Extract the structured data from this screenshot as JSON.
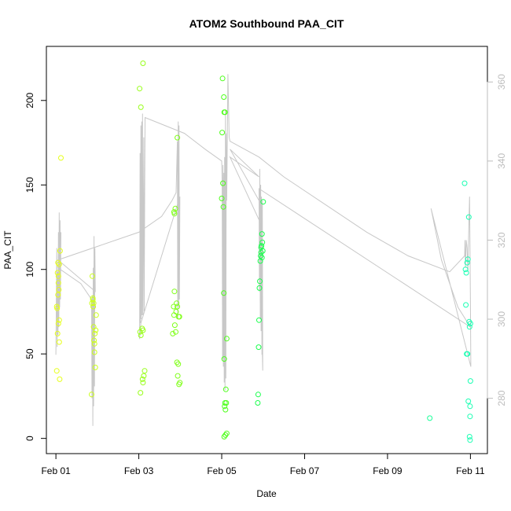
{
  "chart_data": {
    "type": "scatter",
    "title": "ATOM2 Southbound PAA_CIT",
    "xlabel": "Date",
    "ylabel": "PAA_CIT",
    "x_ticks": [
      "Feb 01",
      "Feb 03",
      "Feb 05",
      "Feb 07",
      "Feb 09",
      "Feb 11"
    ],
    "x_tick_days": [
      1,
      3,
      5,
      7,
      9,
      11
    ],
    "xlim": [
      0.77,
      11.41
    ],
    "ylim": [
      -9,
      232
    ],
    "y_ticks": [
      0,
      50,
      100,
      150,
      200
    ],
    "y2lim": [
      266,
      369
    ],
    "y2_ticks": [
      280,
      300,
      320,
      340,
      360
    ],
    "grid": false,
    "colors": {
      "axis": "#000000",
      "secondary_axis": "#bdbdbd",
      "trace": "#c8c8c8"
    },
    "point_series": [
      {
        "color": "#e6ff1a",
        "points": [
          [
            1.02,
            78
          ],
          [
            1.03,
            77
          ],
          [
            1.02,
            40
          ],
          [
            1.04,
            62
          ],
          [
            1.05,
            104
          ],
          [
            1.06,
            92
          ],
          [
            1.07,
            88
          ],
          [
            1.05,
            85
          ],
          [
            1.08,
            57
          ],
          [
            1.06,
            68
          ],
          [
            1.08,
            70
          ],
          [
            1.09,
            35
          ],
          [
            1.1,
            111
          ],
          [
            1.08,
            103
          ],
          [
            1.12,
            166
          ],
          [
            1.06,
            96
          ],
          [
            1.04,
            98
          ]
        ]
      },
      {
        "color": "#ccff1a",
        "points": [
          [
            1.86,
            26
          ],
          [
            1.87,
            80
          ],
          [
            1.88,
            96
          ],
          [
            1.89,
            83
          ],
          [
            1.9,
            78
          ],
          [
            1.91,
            66
          ],
          [
            1.92,
            58
          ],
          [
            1.93,
            51
          ],
          [
            1.95,
            42
          ],
          [
            1.94,
            62
          ],
          [
            1.97,
            73
          ],
          [
            1.91,
            80
          ],
          [
            1.89,
            82
          ],
          [
            1.93,
            56
          ],
          [
            1.96,
            64
          ]
        ]
      },
      {
        "color": "#99ff1a",
        "points": [
          [
            3.02,
            207
          ],
          [
            3.05,
            196
          ],
          [
            3.1,
            222
          ],
          [
            3.03,
            63
          ],
          [
            3.05,
            61
          ],
          [
            3.08,
            65
          ],
          [
            3.1,
            64
          ],
          [
            3.04,
            27
          ],
          [
            3.09,
            35
          ],
          [
            3.12,
            37
          ],
          [
            3.14,
            40
          ],
          [
            3.1,
            33
          ]
        ]
      },
      {
        "color": "#80ff1a",
        "points": [
          [
            3.82,
            62
          ],
          [
            3.84,
            78
          ],
          [
            3.85,
            73
          ],
          [
            3.86,
            87
          ],
          [
            3.87,
            67
          ],
          [
            3.85,
            134
          ],
          [
            3.88,
            136
          ],
          [
            3.9,
            75
          ],
          [
            3.91,
            80
          ],
          [
            3.93,
            78
          ],
          [
            3.89,
            63
          ],
          [
            3.92,
            45
          ],
          [
            3.95,
            44
          ],
          [
            3.96,
            72
          ],
          [
            3.98,
            72
          ],
          [
            3.94,
            37
          ],
          [
            3.97,
            32
          ],
          [
            3.99,
            33
          ],
          [
            3.93,
            178
          ],
          [
            3.86,
            133
          ]
        ]
      },
      {
        "color": "#4dff1a",
        "points": [
          [
            5.02,
            213
          ],
          [
            5.05,
            202
          ],
          [
            5.06,
            193
          ],
          [
            5.08,
            193
          ],
          [
            5.01,
            181
          ],
          [
            5.03,
            151
          ],
          [
            5.0,
            142
          ],
          [
            5.04,
            137
          ],
          [
            5.05,
            86
          ],
          [
            5.06,
            47
          ],
          [
            5.12,
            59
          ],
          [
            5.1,
            29
          ],
          [
            5.08,
            21
          ],
          [
            5.09,
            17
          ],
          [
            5.11,
            21
          ],
          [
            5.07,
            19
          ],
          [
            5.09,
            2
          ],
          [
            5.12,
            3
          ],
          [
            5.06,
            1
          ]
        ]
      },
      {
        "color": "#1aff4d",
        "points": [
          [
            5.87,
            21
          ],
          [
            5.88,
            26
          ],
          [
            5.89,
            54
          ],
          [
            5.9,
            70
          ],
          [
            5.91,
            89
          ],
          [
            5.92,
            93
          ],
          [
            5.93,
            105
          ],
          [
            5.94,
            108
          ],
          [
            5.95,
            110
          ],
          [
            5.96,
            114
          ],
          [
            5.97,
            121
          ],
          [
            5.98,
            116
          ],
          [
            5.99,
            111
          ],
          [
            6.0,
            140
          ],
          [
            5.97,
            107
          ],
          [
            5.95,
            113
          ]
        ]
      },
      {
        "color": "#1aff99",
        "points": [
          [
            10.02,
            12
          ]
        ]
      },
      {
        "color": "#1affb3",
        "points": [
          [
            10.86,
            151
          ],
          [
            10.88,
            100
          ],
          [
            10.9,
            98
          ],
          [
            10.92,
            104
          ],
          [
            10.94,
            106
          ],
          [
            10.96,
            131
          ],
          [
            10.89,
            79
          ],
          [
            10.91,
            50
          ],
          [
            10.93,
            50
          ],
          [
            10.95,
            22
          ],
          [
            10.97,
            69
          ],
          [
            10.98,
            66
          ],
          [
            11.0,
            34
          ],
          [
            10.99,
            19
          ],
          [
            10.99,
            13
          ],
          [
            10.98,
            1
          ],
          [
            10.99,
            -1
          ],
          [
            11.0,
            68
          ]
        ]
      }
    ],
    "line_series": [
      {
        "name": "",
        "axis": "right",
        "color": "#c8c8c8",
        "points": [
          [
            1.0,
            291
          ],
          [
            1.01,
            306
          ],
          [
            1.02,
            318
          ],
          [
            1.03,
            293
          ],
          [
            1.04,
            312
          ],
          [
            1.05,
            296
          ],
          [
            1.06,
            322
          ],
          [
            1.07,
            298
          ],
          [
            1.08,
            327
          ],
          [
            1.09,
            303
          ],
          [
            1.1,
            325
          ],
          [
            1.11,
            305
          ],
          [
            1.12,
            322
          ],
          [
            1.05,
            313
          ],
          [
            1.6,
            309
          ],
          [
            1.86,
            305
          ],
          [
            1.87,
            280
          ],
          [
            1.88,
            306
          ],
          [
            1.89,
            273
          ],
          [
            1.9,
            313
          ],
          [
            1.91,
            278
          ],
          [
            1.92,
            321
          ],
          [
            1.93,
            283
          ],
          [
            1.94,
            318
          ],
          [
            1.95,
            307
          ],
          [
            1.05,
            315
          ],
          [
            3.0,
            322
          ],
          [
            3.55,
            326
          ],
          [
            3.8,
            330
          ],
          [
            3.9,
            332
          ],
          [
            3.93,
            345
          ],
          [
            3.94,
            300
          ],
          [
            3.95,
            350
          ],
          [
            3.96,
            303
          ],
          [
            3.97,
            349
          ],
          [
            3.98,
            305
          ],
          [
            3.99,
            331
          ],
          [
            3.05,
            299
          ],
          [
            3.02,
            295
          ],
          [
            3.03,
            342
          ],
          [
            3.04,
            299
          ],
          [
            3.05,
            349
          ],
          [
            3.06,
            300
          ],
          [
            3.07,
            350
          ],
          [
            3.08,
            301
          ],
          [
            3.09,
            352
          ],
          [
            3.1,
            301
          ],
          [
            3.12,
            346
          ],
          [
            3.13,
            302
          ],
          [
            3.15,
            351
          ],
          [
            4.1,
            347
          ],
          [
            4.6,
            343
          ],
          [
            5.0,
            340
          ],
          [
            5.01,
            334
          ],
          [
            5.02,
            290
          ],
          [
            5.03,
            339
          ],
          [
            5.04,
            288
          ],
          [
            5.05,
            337
          ],
          [
            5.06,
            284
          ],
          [
            5.07,
            341
          ],
          [
            5.08,
            282
          ],
          [
            5.09,
            353
          ],
          [
            5.1,
            285
          ],
          [
            5.11,
            347
          ],
          [
            5.12,
            330
          ],
          [
            5.15,
            362
          ],
          [
            5.18,
            346
          ],
          [
            5.2,
            345
          ],
          [
            5.9,
            341
          ],
          [
            6.5,
            336
          ],
          [
            7.5,
            329
          ],
          [
            8.5,
            322
          ],
          [
            9.5,
            316
          ],
          [
            10.5,
            312
          ],
          [
            10.86,
            316
          ],
          [
            10.87,
            320
          ],
          [
            10.88,
            313
          ],
          [
            10.9,
            320
          ],
          [
            10.92,
            318
          ],
          [
            10.94,
            312
          ],
          [
            10.96,
            323
          ],
          [
            10.98,
            331
          ],
          [
            11.0,
            304
          ],
          [
            11.01,
            288
          ],
          [
            10.05,
            328
          ],
          [
            10.3,
            315
          ],
          [
            10.7,
            303
          ],
          [
            11.0,
            298
          ],
          [
            5.9,
            333
          ],
          [
            5.91,
            307
          ],
          [
            5.92,
            338
          ],
          [
            5.93,
            300
          ],
          [
            5.94,
            334
          ],
          [
            5.95,
            297
          ],
          [
            5.96,
            331
          ],
          [
            5.97,
            291
          ],
          [
            5.98,
            330
          ],
          [
            5.99,
            287
          ],
          [
            5.9,
            330
          ],
          [
            5.2,
            343
          ],
          [
            5.7,
            338
          ],
          [
            5.9,
            336
          ],
          [
            5.2,
            341
          ],
          [
            5.95,
            324
          ]
        ]
      }
    ]
  }
}
